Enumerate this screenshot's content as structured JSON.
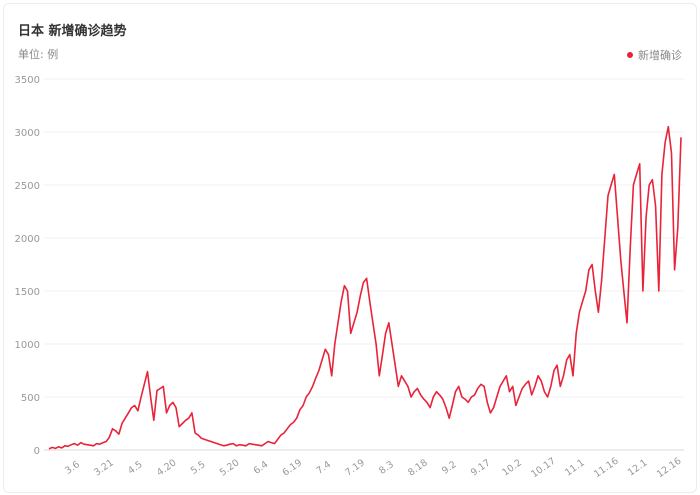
{
  "header": {
    "title": "日本 新增确诊趋势",
    "unit": "单位: 例"
  },
  "legend": {
    "label": "新增确诊",
    "color": "#e8233a"
  },
  "chart_data": {
    "type": "line",
    "title": "日本 新增确诊趋势",
    "ylabel": "单位: 例",
    "ylim": [
      0,
      3500
    ],
    "yticks": [
      "0",
      "500",
      "1000",
      "1500",
      "2000",
      "2500",
      "3000",
      "3500"
    ],
    "xticks": [
      "3.6",
      "3.21",
      "4.5",
      "4.20",
      "5.5",
      "5.20",
      "6.4",
      "6.19",
      "7.4",
      "7.19",
      "8.3",
      "8.18",
      "9.2",
      "9.17",
      "10.2",
      "10.17",
      "11.1",
      "11.16",
      "12.1",
      "12.16"
    ],
    "grid": true,
    "legend_position": "top-right",
    "series": [
      {
        "name": "新增确诊",
        "color": "#e8233a",
        "values": [
          10,
          25,
          15,
          30,
          20,
          40,
          35,
          50,
          60,
          45,
          70,
          55,
          50,
          45,
          40,
          60,
          55,
          70,
          80,
          120,
          200,
          180,
          150,
          250,
          300,
          350,
          400,
          420,
          370,
          500,
          620,
          740,
          500,
          280,
          560,
          580,
          600,
          350,
          420,
          450,
          400,
          220,
          250,
          280,
          300,
          350,
          160,
          140,
          110,
          100,
          90,
          80,
          70,
          60,
          50,
          40,
          45,
          55,
          60,
          40,
          50,
          45,
          40,
          60,
          55,
          50,
          45,
          40,
          60,
          80,
          70,
          60,
          100,
          140,
          160,
          200,
          240,
          260,
          300,
          380,
          420,
          500,
          540,
          600,
          680,
          750,
          850,
          950,
          900,
          700,
          1000,
          1200,
          1400,
          1550,
          1500,
          1100,
          1200,
          1300,
          1450,
          1580,
          1620,
          1400,
          1200,
          1000,
          700,
          900,
          1100,
          1200,
          1000,
          800,
          600,
          700,
          650,
          600,
          500,
          550,
          580,
          520,
          480,
          450,
          400,
          500,
          550,
          520,
          480,
          400,
          300,
          420,
          550,
          600,
          500,
          480,
          450,
          500,
          520,
          580,
          620,
          600,
          450,
          350,
          400,
          500,
          600,
          650,
          700,
          550,
          600,
          420,
          500,
          580,
          620,
          650,
          520,
          600,
          700,
          650,
          550,
          500,
          600,
          750,
          800,
          600,
          700,
          850,
          900,
          700,
          1100,
          1300,
          1400,
          1500,
          1700,
          1750,
          1500,
          1300,
          1600,
          2000,
          2400,
          2500,
          2600,
          2200,
          1800,
          1500,
          1200,
          1900,
          2500,
          2600,
          2700,
          1500,
          2200,
          2500,
          2550,
          2300,
          1500,
          2600,
          2900,
          3050,
          2800,
          1700,
          2100,
          2950
        ]
      }
    ]
  }
}
